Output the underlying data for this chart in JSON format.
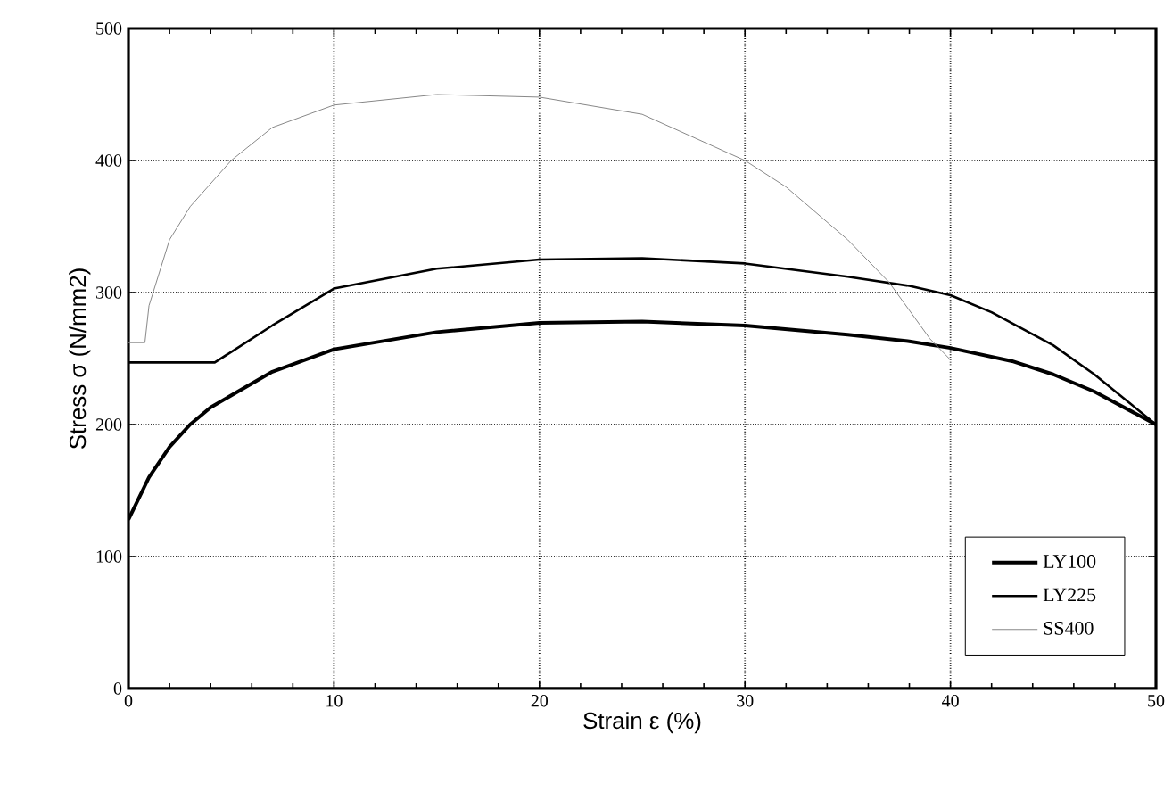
{
  "chart_data": {
    "type": "line",
    "xlabel": "Strain ε (%)",
    "ylabel": "Stress σ (N/mm2)",
    "xlim": [
      0,
      50
    ],
    "xticks": [
      0,
      10,
      20,
      30,
      40,
      50
    ],
    "ylim": [
      0,
      500
    ],
    "yticks": [
      0,
      100,
      200,
      300,
      400,
      500
    ],
    "grid": true,
    "legend": "bottom right",
    "marker": "none",
    "series": [
      {
        "name": "LY100",
        "color": "#000000",
        "x": [
          0,
          1,
          2,
          3,
          4,
          5,
          7,
          10,
          15,
          20,
          25,
          30,
          35,
          38,
          40,
          43,
          45,
          47,
          50
        ],
        "values": [
          128,
          160,
          183,
          200,
          213,
          222,
          240,
          257,
          270,
          277,
          278,
          275,
          268,
          263,
          258,
          248,
          238,
          225,
          200
        ]
      },
      {
        "name": "LY225",
        "color": "#000000",
        "x": [
          0,
          4.2,
          5,
          7,
          10,
          15,
          20,
          25,
          30,
          35,
          38,
          40,
          42,
          45,
          47,
          50
        ],
        "values": [
          247,
          247,
          255,
          275,
          303,
          318,
          325,
          326,
          322,
          312,
          305,
          298,
          285,
          260,
          238,
          200
        ]
      },
      {
        "name": "SS400",
        "color": "#888888",
        "x": [
          0,
          0.8,
          1,
          2,
          3,
          5,
          7,
          10,
          15,
          20,
          25,
          30,
          32,
          35,
          37,
          39,
          40
        ],
        "values": [
          262,
          262,
          290,
          340,
          365,
          400,
          425,
          442,
          450,
          448,
          435,
          400,
          380,
          340,
          308,
          265,
          249
        ]
      }
    ]
  }
}
